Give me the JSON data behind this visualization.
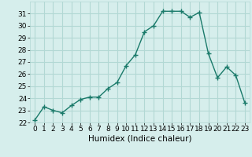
{
  "x": [
    0,
    1,
    2,
    3,
    4,
    5,
    6,
    7,
    8,
    9,
    10,
    11,
    12,
    13,
    14,
    15,
    16,
    17,
    18,
    19,
    20,
    21,
    22,
    23
  ],
  "y": [
    22.2,
    23.3,
    23.0,
    22.8,
    23.4,
    23.9,
    24.1,
    24.1,
    24.8,
    25.3,
    26.7,
    27.6,
    29.5,
    30.0,
    31.2,
    31.2,
    31.2,
    30.7,
    31.1,
    27.7,
    25.7,
    26.6,
    25.9,
    23.6
  ],
  "line_color": "#1a7a6a",
  "marker": "+",
  "marker_size": 4,
  "marker_lw": 1.0,
  "line_width": 1.0,
  "bg_color": "#d6eeec",
  "grid_color": "#b2d8d4",
  "xlabel": "Humidex (Indice chaleur)",
  "ylim": [
    22,
    32
  ],
  "xlim": [
    -0.5,
    23.5
  ],
  "yticks": [
    22,
    23,
    24,
    25,
    26,
    27,
    28,
    29,
    30,
    31
  ],
  "xticks": [
    0,
    1,
    2,
    3,
    4,
    5,
    6,
    7,
    8,
    9,
    10,
    11,
    12,
    13,
    14,
    15,
    16,
    17,
    18,
    19,
    20,
    21,
    22,
    23
  ],
  "tick_fontsize": 6.5,
  "xlabel_fontsize": 7.5
}
